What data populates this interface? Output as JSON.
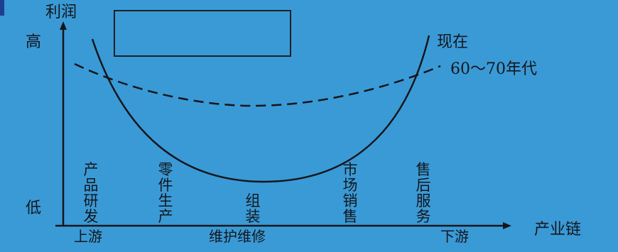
{
  "y_axis": {
    "title": "利润",
    "high": "高",
    "low": "低"
  },
  "x_axis": {
    "title": "产业链",
    "upstream": "上游",
    "middle": "维护维修",
    "downstream": "下游"
  },
  "curves": {
    "current": {
      "label": "现在"
    },
    "past": {
      "label": "60～70年代"
    }
  },
  "stages": [
    {
      "key": "rnd",
      "chars": [
        "产",
        "品",
        "研",
        "发"
      ]
    },
    {
      "key": "parts",
      "chars": [
        "零",
        "件",
        "生",
        "产"
      ]
    },
    {
      "key": "assembly",
      "chars": [
        "组",
        "装"
      ]
    },
    {
      "key": "marketing",
      "chars": [
        "市",
        "场",
        "销",
        "售"
      ]
    },
    {
      "key": "service",
      "chars": [
        "售",
        "后",
        "服",
        "务"
      ]
    }
  ],
  "colors": {
    "background": "#3a9ad6",
    "ink": "#14161c",
    "box_border": "#1a1e26"
  }
}
